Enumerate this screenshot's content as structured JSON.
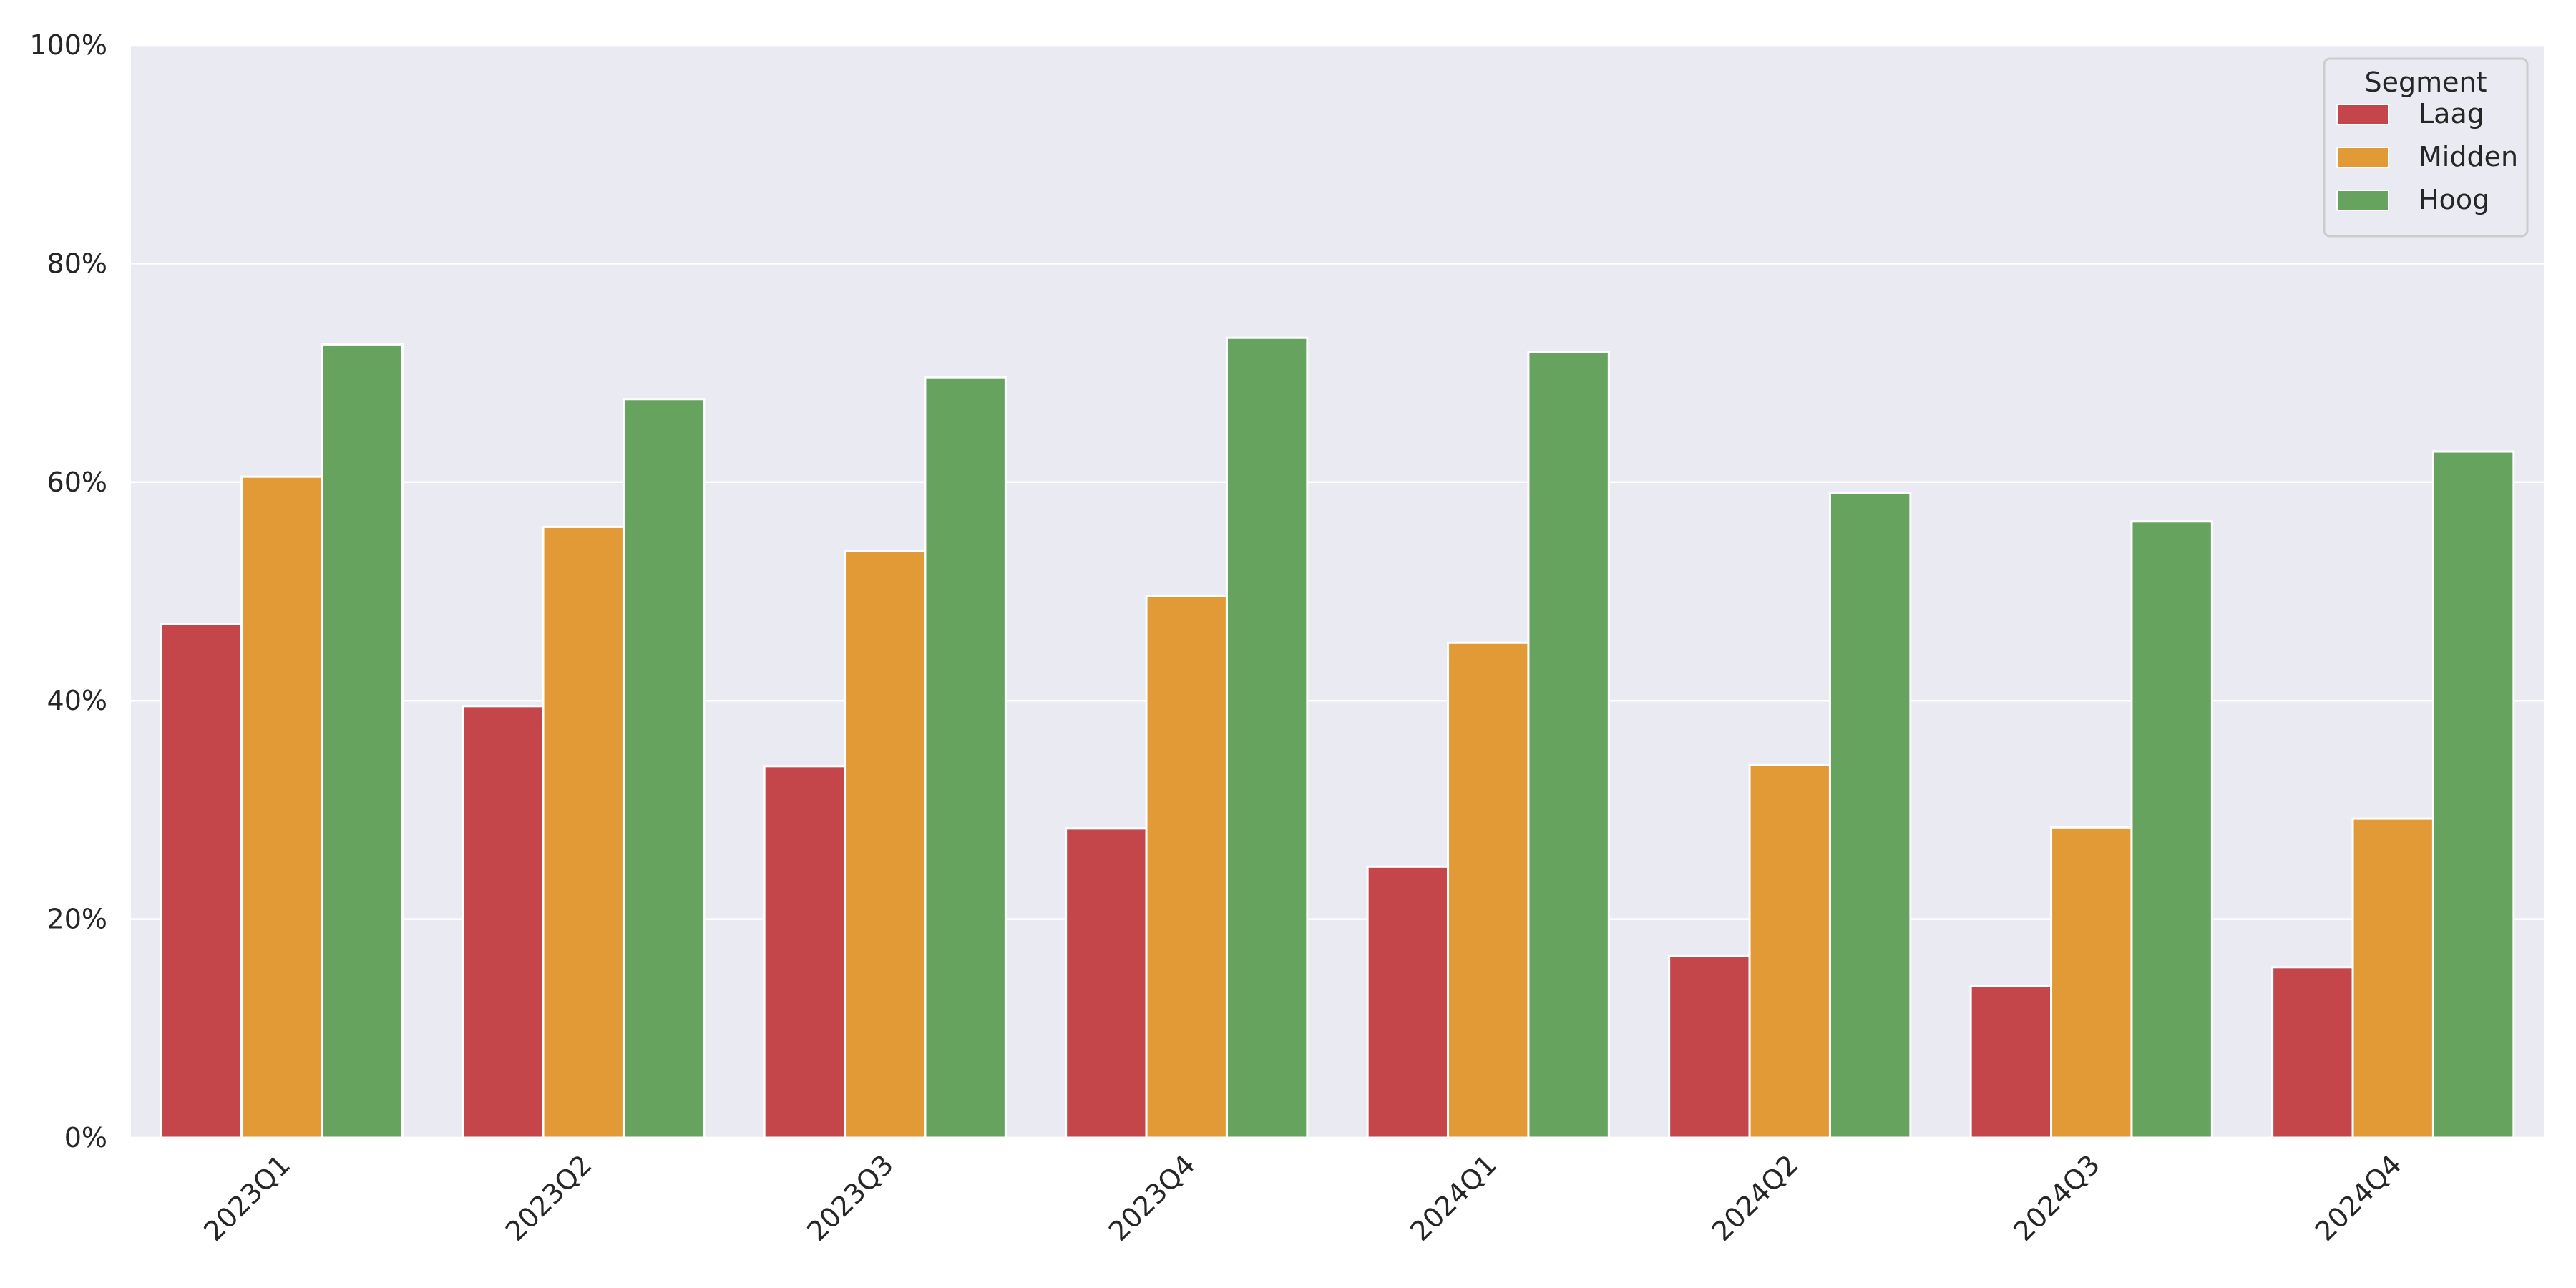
{
  "chart_data": {
    "type": "bar",
    "categories": [
      "2023Q1",
      "2023Q2",
      "2023Q3",
      "2023Q4",
      "2024Q1",
      "2024Q2",
      "2024Q3",
      "2024Q4"
    ],
    "series": [
      {
        "name": "Laag",
        "color": "#c4464b",
        "values": [
          47.0,
          39.5,
          34.0,
          28.3,
          24.8,
          16.6,
          13.9,
          15.6
        ]
      },
      {
        "name": "Midden",
        "color": "#e29a37",
        "values": [
          60.5,
          55.9,
          53.7,
          49.6,
          45.3,
          34.1,
          28.4,
          29.2
        ]
      },
      {
        "name": "Hoog",
        "color": "#66a35f",
        "values": [
          72.6,
          67.6,
          69.6,
          73.2,
          71.9,
          59.0,
          56.4,
          62.8
        ]
      }
    ],
    "y_ticks": [
      "0%",
      "20%",
      "40%",
      "60%",
      "80%",
      "100%"
    ],
    "ylim": [
      0,
      100
    ],
    "legend": {
      "title": "Segment",
      "placement": "top-right"
    },
    "grid": true,
    "background": "#eaeaf2"
  }
}
